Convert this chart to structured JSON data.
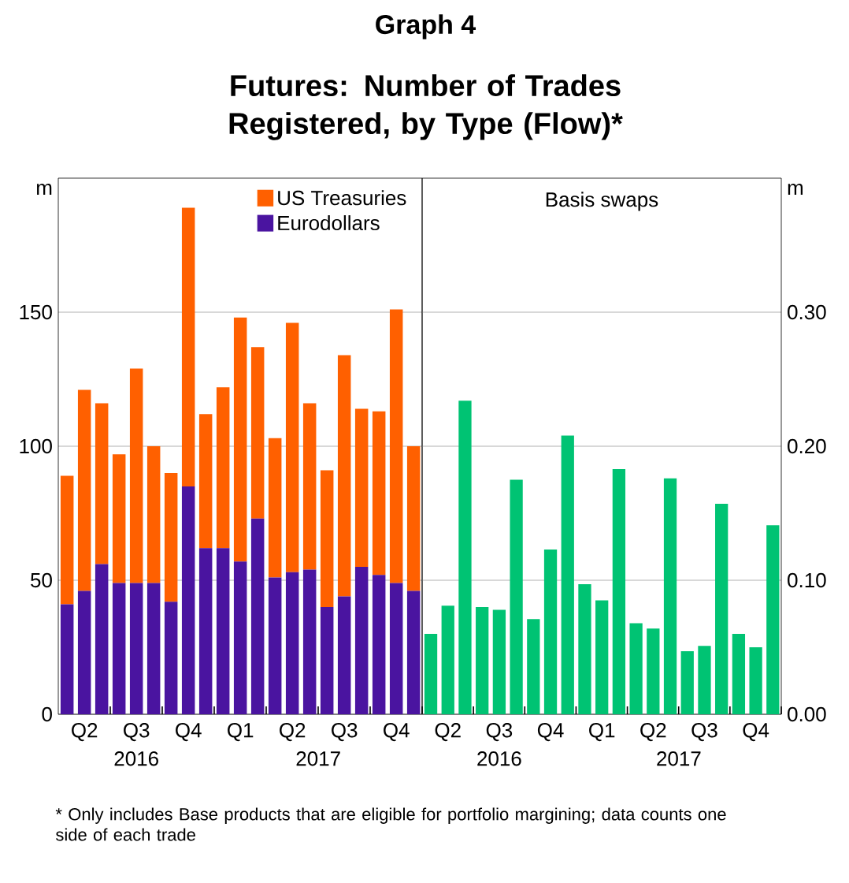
{
  "chart_data": [
    {
      "type": "bar",
      "stacked": true,
      "title": "Graph 4",
      "subtitle": "Futures: Number of Trades Registered, by Type (Flow)*",
      "ylabel": "m",
      "x": [
        "2016-04",
        "2016-05",
        "2016-06",
        "2016-07",
        "2016-08",
        "2016-09",
        "2016-10",
        "2016-11",
        "2016-12",
        "2017-01",
        "2017-02",
        "2017-03",
        "2017-04",
        "2017-05",
        "2017-06",
        "2017-07",
        "2017-08",
        "2017-09",
        "2017-10",
        "2017-11",
        "2017-12"
      ],
      "series": [
        {
          "name": "Eurodollars",
          "color": "#4a14a0",
          "values": [
            41,
            46,
            56,
            49,
            49,
            49,
            42,
            85,
            62,
            62,
            57,
            73,
            51,
            53,
            54,
            40,
            44,
            55,
            52,
            49,
            46
          ]
        },
        {
          "name": "US Treasuries",
          "color": "#ff6000",
          "values": [
            48,
            75,
            60,
            48,
            80,
            51,
            48,
            104,
            50,
            60,
            91,
            64,
            52,
            93,
            62,
            51,
            90,
            59,
            61,
            102,
            54
          ]
        }
      ],
      "xlim": [
        "2016-03-16",
        "2017-12-16"
      ],
      "xticks": [
        {
          "value": "2016-05",
          "label": "Q2"
        },
        {
          "value": "2016-08",
          "label": "Q3"
        },
        {
          "value": "2016-11",
          "label": "Q4"
        },
        {
          "value": "2017-02",
          "label": "Q1"
        },
        {
          "value": "2017-05",
          "label": "Q2"
        },
        {
          "value": "2017-08",
          "label": "Q3"
        },
        {
          "value": "2017-11",
          "label": "Q4"
        },
        {
          "value": "2016-06-16",
          "label": null
        },
        {
          "value": "2016-09-16",
          "label": null
        },
        {
          "value": "2016-12-16",
          "label": null
        },
        {
          "value": "2017-03-16",
          "label": null
        },
        {
          "value": "2017-06-16",
          "label": null
        },
        {
          "value": "2017-09-16",
          "label": null
        },
        {
          "value": "2017-12-16",
          "label": null
        }
      ],
      "ylim": [
        0,
        200
      ],
      "yticks": [
        0,
        50,
        100,
        150
      ],
      "grid": "y",
      "legend": "top right",
      "annotations": [
        "2016",
        "2017",
        "* Only includes Base products that are eligible for portfolio margining; data counts one side of each trade"
      ]
    },
    {
      "type": "bar",
      "title": "Basis swaps",
      "ylabel": "m",
      "x": [
        "2016-04",
        "2016-05",
        "2016-06",
        "2016-07",
        "2016-08",
        "2016-09",
        "2016-10",
        "2016-11",
        "2016-12",
        "2017-01",
        "2017-02",
        "2017-03",
        "2017-04",
        "2017-05",
        "2017-06",
        "2017-07",
        "2017-08",
        "2017-09",
        "2017-10",
        "2017-11",
        "2017-12"
      ],
      "color": "#00c373",
      "values": [
        0.06,
        0.081,
        0.234,
        0.08,
        0.078,
        0.175,
        0.071,
        0.123,
        0.208,
        0.097,
        0.085,
        0.183,
        0.068,
        0.064,
        0.176,
        0.047,
        0.051,
        0.157,
        0.06,
        0.05,
        0.141
      ],
      "xlim": [
        "2016-03-16",
        "2017-12-16"
      ],
      "xticks": [
        {
          "value": "2016-05",
          "label": "Q2"
        },
        {
          "value": "2016-08",
          "label": "Q3"
        },
        {
          "value": "2016-11",
          "label": "Q4"
        },
        {
          "value": "2017-02",
          "label": "Q1"
        },
        {
          "value": "2017-05",
          "label": "Q2"
        },
        {
          "value": "2017-08",
          "label": "Q3"
        },
        {
          "value": "2017-11",
          "label": "Q4"
        },
        {
          "value": "2016-06-16",
          "label": null
        },
        {
          "value": "2016-09-16",
          "label": null
        },
        {
          "value": "2016-12-16",
          "label": null
        },
        {
          "value": "2017-03-16",
          "label": null
        },
        {
          "value": "2017-06-16",
          "label": null
        },
        {
          "value": "2017-09-16",
          "label": null
        },
        {
          "value": "2017-12-16",
          "label": null
        }
      ],
      "ylim": [
        0,
        0.4
      ],
      "yticks": [
        {
          "value": 0,
          "label": "0.00"
        },
        {
          "value": 0.1,
          "label": "0.10"
        },
        {
          "value": 0.2,
          "label": "0.20"
        },
        {
          "value": 0.3,
          "label": "0.30"
        }
      ],
      "grid": "y",
      "annotations": [
        "2016",
        "2017"
      ]
    }
  ]
}
